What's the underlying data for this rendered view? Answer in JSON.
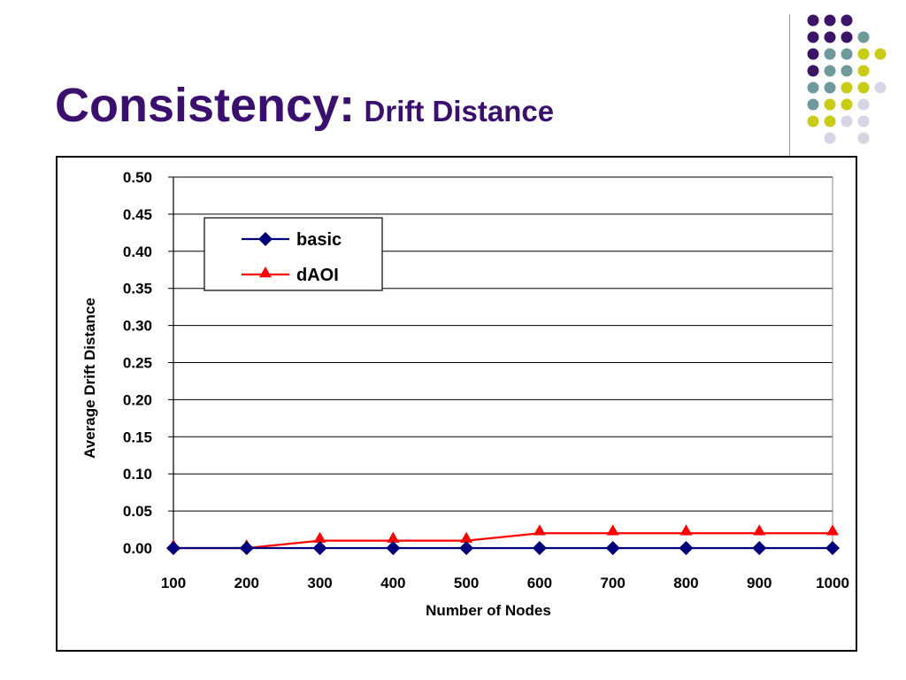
{
  "slide": {
    "title_main": "Consistency:",
    "title_sub": "Drift Distance"
  },
  "decoration": {
    "dot_colors": {
      "purple": "#3b1468",
      "teal": "#6f9a9b",
      "yellow": "#c9cc16",
      "lavender": "#d6d5e6"
    }
  },
  "chart_data": {
    "type": "line",
    "title": "",
    "xlabel": "Number of Nodes",
    "ylabel": "Average Drift Distance",
    "categories": [
      "100",
      "200",
      "300",
      "400",
      "500",
      "600",
      "700",
      "800",
      "900",
      "1000"
    ],
    "ylim": [
      0,
      0.5
    ],
    "yticks": [
      "0.00",
      "0.05",
      "0.10",
      "0.15",
      "0.20",
      "0.25",
      "0.30",
      "0.35",
      "0.40",
      "0.45",
      "0.50"
    ],
    "grid": true,
    "legend_position": "top-left",
    "series": [
      {
        "name": "basic",
        "color": "#00007a",
        "marker": "diamond",
        "values": [
          0,
          0,
          0,
          0,
          0,
          0,
          0,
          0,
          0,
          0
        ]
      },
      {
        "name": "dAOI",
        "color": "#ff0000",
        "marker": "triangle",
        "values": [
          0,
          0,
          0.01,
          0.01,
          0.01,
          0.02,
          0.02,
          0.02,
          0.02,
          0.02
        ]
      }
    ]
  }
}
